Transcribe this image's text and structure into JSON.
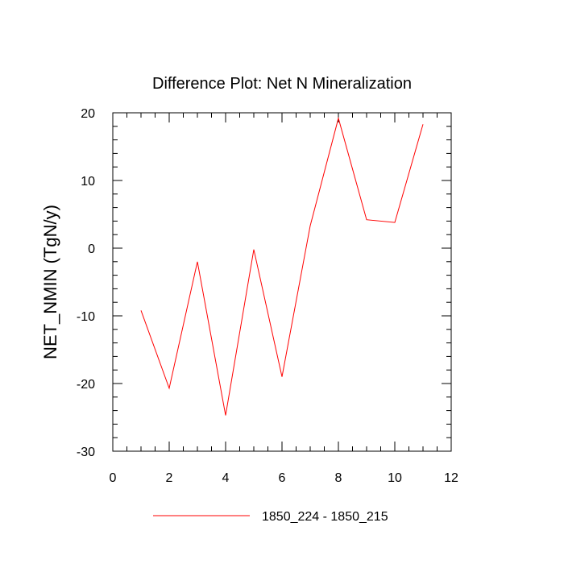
{
  "chart_data": {
    "type": "line",
    "title": "Difference Plot: Net N Mineralization",
    "xlabel": "",
    "ylabel": "NET_NMIN  (TgN/y)",
    "xlim": [
      0,
      12
    ],
    "ylim": [
      -30,
      20
    ],
    "xticks": [
      0,
      2,
      4,
      6,
      8,
      10,
      12
    ],
    "yticks": [
      -30,
      -20,
      -10,
      0,
      10,
      20
    ],
    "grid": false,
    "legend_position": "bottom-center",
    "series": [
      {
        "name": "1850_224 - 1850_215",
        "color": "#ff0000",
        "x": [
          1,
          2,
          3,
          4,
          5,
          6,
          7,
          8,
          9,
          10,
          11
        ],
        "y": [
          -9.2,
          -20.7,
          -2.0,
          -24.7,
          -0.2,
          -19.0,
          3.3,
          19.2,
          4.2,
          3.8,
          18.3
        ]
      }
    ]
  }
}
